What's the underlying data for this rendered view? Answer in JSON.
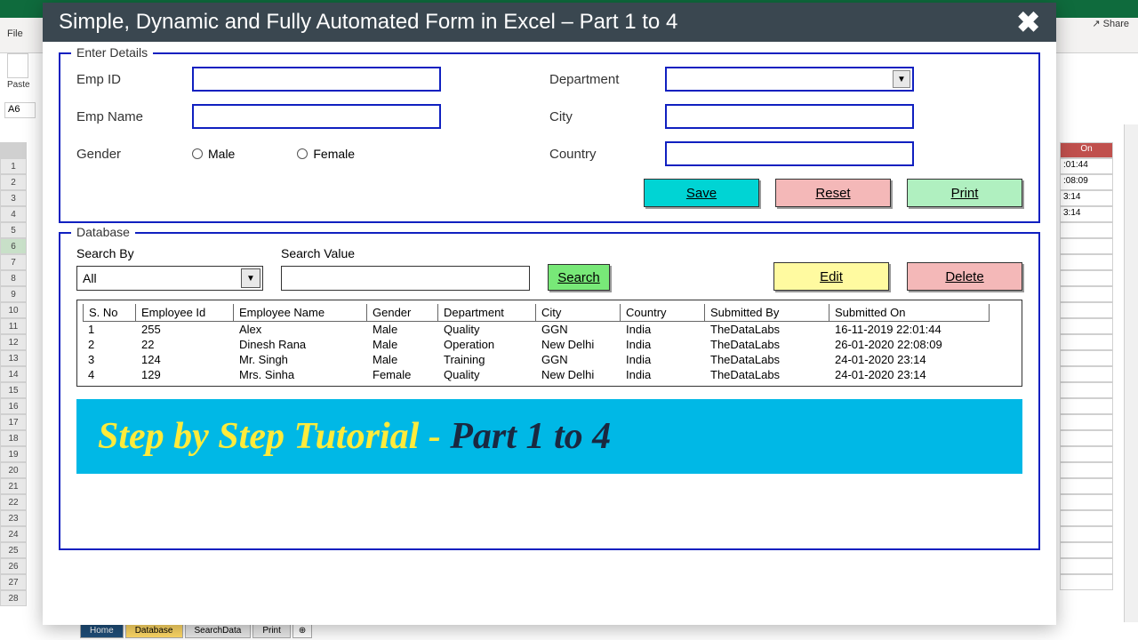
{
  "excel": {
    "file_tab": "File",
    "paste": "Paste",
    "name_box": "A6",
    "share": "Share",
    "right_header": "On",
    "right_cells": [
      ":01:44",
      ":08:09",
      "3:14",
      "3:14"
    ],
    "sheet_tabs": {
      "home": "Home",
      "database": "Database",
      "search": "SearchData",
      "print": "Print"
    }
  },
  "modal": {
    "title": "Simple, Dynamic and Fully Automated Form in Excel – Part 1 to 4"
  },
  "enter": {
    "legend": "Enter Details",
    "emp_id_lbl": "Emp ID",
    "emp_name_lbl": "Emp Name",
    "gender_lbl": "Gender",
    "male": "Male",
    "female": "Female",
    "dept_lbl": "Department",
    "city_lbl": "City",
    "country_lbl": "Country",
    "save": "Save",
    "reset": "Reset",
    "print": "Print"
  },
  "db": {
    "legend": "Database",
    "search_by_lbl": "Search By",
    "search_by_val": "All",
    "search_val_lbl": "Search Value",
    "search_btn": "Search",
    "edit": "Edit",
    "delete": "Delete",
    "columns": {
      "sno": "S. No",
      "eid": "Employee Id",
      "name": "Employee Name",
      "gen": "Gender",
      "dep": "Department",
      "city": "City",
      "ctry": "Country",
      "sub": "Submitted By",
      "on": "Submitted On"
    },
    "rows": [
      {
        "sno": "1",
        "eid": "255",
        "name": "Alex",
        "gen": "Male",
        "dep": "Quality",
        "city": "GGN",
        "ctry": "India",
        "sub": "TheDataLabs",
        "on": "16-11-2019 22:01:44"
      },
      {
        "sno": "2",
        "eid": "22",
        "name": "Dinesh Rana",
        "gen": "Male",
        "dep": "Operation",
        "city": "New Delhi",
        "ctry": "India",
        "sub": "TheDataLabs",
        "on": "26-01-2020 22:08:09"
      },
      {
        "sno": "3",
        "eid": "124",
        "name": "Mr. Singh",
        "gen": "Male",
        "dep": "Training",
        "city": "GGN",
        "ctry": "India",
        "sub": "TheDataLabs",
        "on": "24-01-2020 23:14"
      },
      {
        "sno": "4",
        "eid": "129",
        "name": "Mrs. Sinha",
        "gen": "Female",
        "dep": "Quality",
        "city": "New Delhi",
        "ctry": "India",
        "sub": "TheDataLabs",
        "on": "24-01-2020 23:14"
      }
    ]
  },
  "banner": {
    "a": "Step by Step Tutorial - ",
    "b": "Part 1 to 4"
  },
  "colors": {
    "border": "#1020c0",
    "title_bg": "#3a4750",
    "save": "#00d4d4",
    "reset": "#f4b8b8",
    "print": "#b0f0c0",
    "search": "#78e878",
    "edit": "#fffaa0",
    "banner_bg": "#00b8e6",
    "banner_a": "#ffeb3b",
    "banner_b": "#1a2840"
  }
}
